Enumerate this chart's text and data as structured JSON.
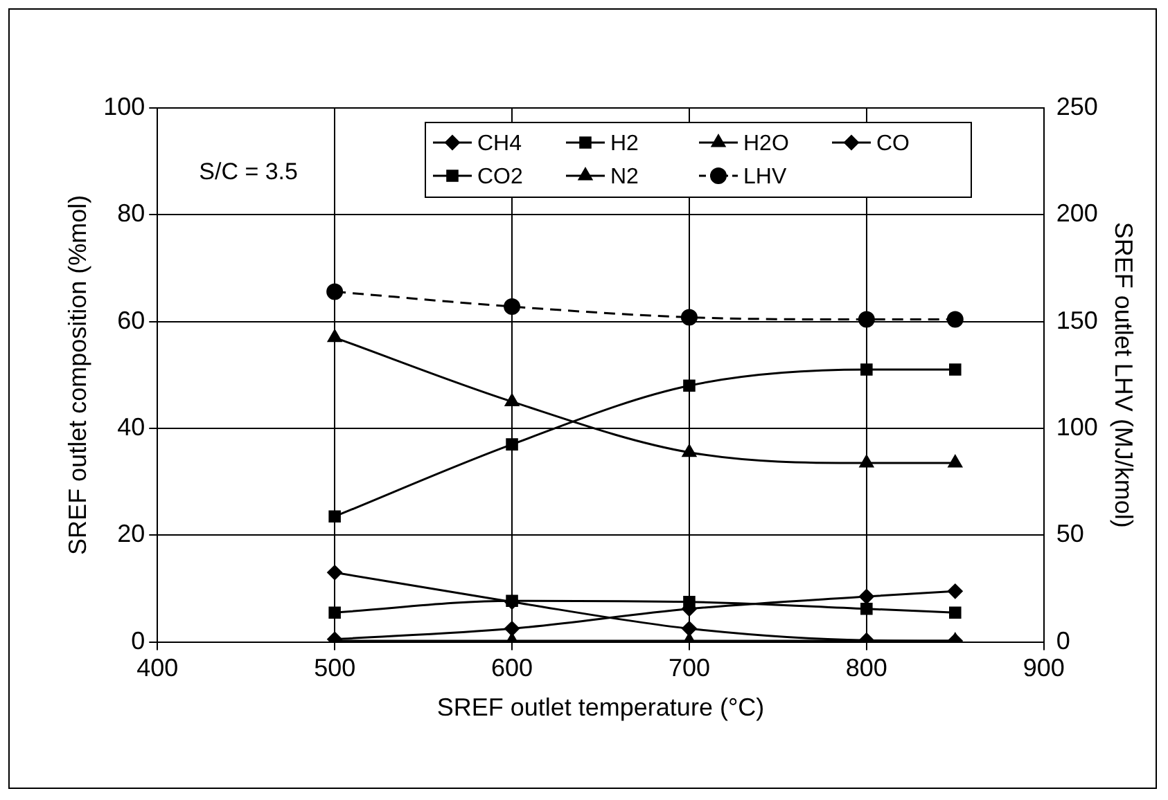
{
  "chart_data": {
    "type": "line",
    "xlabel": "SREF outlet temperature (°C)",
    "ylabel": "SREF outlet composition (%mol)",
    "y2label": "SREF outlet LHV (MJ/kmol)",
    "x": [
      500,
      600,
      700,
      800,
      850
    ],
    "series": [
      {
        "name": "CH4",
        "color": "#000000",
        "marker": "diamond",
        "values": [
          13,
          7.5,
          2.5,
          0.3,
          0.2
        ]
      },
      {
        "name": "H2",
        "color": "#000000",
        "marker": "square",
        "values": [
          23.5,
          37,
          48,
          51,
          51
        ]
      },
      {
        "name": "H2O",
        "color": "#000000",
        "marker": "triangle",
        "values": [
          57,
          45,
          35.5,
          33.5,
          33.5
        ]
      },
      {
        "name": "CO",
        "color": "#000000",
        "marker": "diamond",
        "values": [
          0.5,
          2.5,
          6.2,
          8.5,
          9.5
        ]
      },
      {
        "name": "CO2",
        "color": "#000000",
        "marker": "square",
        "values": [
          5.5,
          7.7,
          7.5,
          6.2,
          5.5
        ]
      },
      {
        "name": "N2",
        "color": "#000000",
        "marker": "triangle",
        "values": [
          0.2,
          0.2,
          0.2,
          0.2,
          0.2
        ]
      },
      {
        "name": "LHV",
        "color": "#000000",
        "marker": "circle",
        "axis": "y2",
        "line_style": "dashed",
        "values": [
          164,
          157,
          152,
          151,
          151
        ]
      }
    ],
    "xlim": [
      400,
      900
    ],
    "xticks": [
      400,
      500,
      600,
      700,
      800,
      900
    ],
    "ylim": [
      0,
      100
    ],
    "yticks": [
      0,
      20,
      40,
      60,
      80,
      100
    ],
    "y2lim": [
      0,
      250
    ],
    "y2ticks": [
      0,
      50,
      100,
      150,
      200,
      250
    ],
    "grid": true,
    "legend": "top",
    "line_style": "solid",
    "annotations": [
      "S/C = 3.5"
    ]
  }
}
